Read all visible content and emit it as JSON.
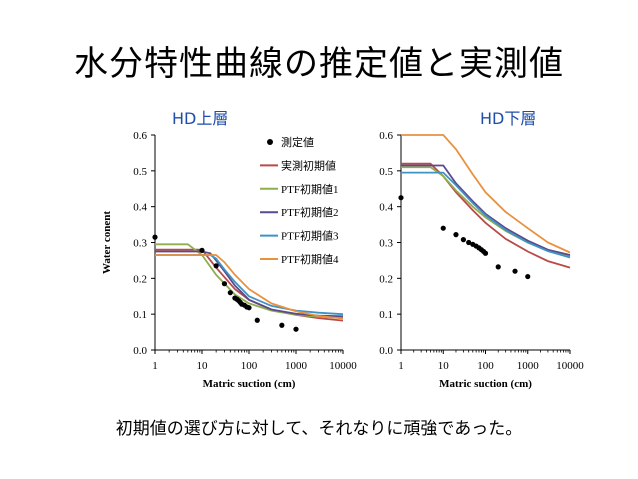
{
  "slide": {
    "title": "水分特性曲線の推定値と実測値",
    "footer": "初期値の選び方に対して、それなりに頑強であった。"
  },
  "colors": {
    "observed": "#000000",
    "measured_init": "#b84a48",
    "ptf1": "#8fae4e",
    "ptf2": "#5a4a8e",
    "ptf3": "#3f93c4",
    "ptf4": "#e8913e",
    "panel_title": "#1f4ea8"
  },
  "chart_data": [
    {
      "type": "line",
      "panel_title": "HD上層",
      "xlabel": "Matric suction (cm)",
      "ylabel": "Water conent",
      "xscale": "log",
      "xlim": [
        1,
        10000
      ],
      "ylim": [
        0,
        0.6
      ],
      "x_ticks": [
        "1",
        "10",
        "100",
        "1000",
        "10000"
      ],
      "y_ticks": [
        "0.0",
        "0.1",
        "0.2",
        "0.3",
        "0.4",
        "0.5",
        "0.6"
      ],
      "legend": {
        "placement": "top-right",
        "entries": [
          "測定値",
          "実測初期値",
          "PTF初期値1",
          "PTF初期値2",
          "PTF初期値3",
          "PTF初期値4"
        ]
      },
      "scatter": {
        "name": "測定値",
        "x": [
          1,
          10,
          20,
          30,
          40,
          50,
          55,
          60,
          65,
          70,
          80,
          90,
          100,
          150,
          500,
          1000
        ],
        "y": [
          0.315,
          0.278,
          0.235,
          0.185,
          0.16,
          0.145,
          0.142,
          0.138,
          0.133,
          0.128,
          0.125,
          0.12,
          0.118,
          0.083,
          0.069,
          0.058
        ]
      },
      "series": [
        {
          "name": "実測初期値",
          "x": [
            1,
            10,
            20,
            50,
            100,
            300,
            1000,
            3000,
            10000
          ],
          "y": [
            0.28,
            0.28,
            0.23,
            0.17,
            0.14,
            0.113,
            0.098,
            0.089,
            0.082
          ]
        },
        {
          "name": "PTF初期値1",
          "x": [
            1,
            5,
            10,
            20,
            50,
            100,
            300,
            1000,
            3000,
            10000
          ],
          "y": [
            0.295,
            0.295,
            0.265,
            0.21,
            0.155,
            0.13,
            0.11,
            0.098,
            0.093,
            0.09
          ]
        },
        {
          "name": "PTF初期値2",
          "x": [
            1,
            10,
            15,
            20,
            30,
            50,
            100,
            300,
            1000,
            3000,
            10000
          ],
          "y": [
            0.275,
            0.275,
            0.27,
            0.25,
            0.22,
            0.18,
            0.14,
            0.113,
            0.101,
            0.096,
            0.094
          ]
        },
        {
          "name": "PTF初期値3",
          "x": [
            1,
            15,
            20,
            30,
            50,
            100,
            300,
            1000,
            3000,
            10000
          ],
          "y": [
            0.265,
            0.265,
            0.255,
            0.225,
            0.19,
            0.15,
            0.123,
            0.11,
            0.104,
            0.1
          ]
        },
        {
          "name": "PTF初期値4",
          "x": [
            1,
            20,
            30,
            50,
            100,
            300,
            1000,
            3000,
            10000
          ],
          "y": [
            0.265,
            0.265,
            0.245,
            0.21,
            0.17,
            0.13,
            0.108,
            0.095,
            0.088
          ]
        }
      ]
    },
    {
      "type": "line",
      "panel_title": "HD下層",
      "xlabel": "Matric suction (cm)",
      "ylabel": "",
      "xscale": "log",
      "xlim": [
        1,
        10000
      ],
      "ylim": [
        0,
        0.6
      ],
      "x_ticks": [
        "1",
        "10",
        "100",
        "1000",
        "10000"
      ],
      "y_ticks": [
        "0.0",
        "0.1",
        "0.2",
        "0.3",
        "0.4",
        "0.5",
        "0.6"
      ],
      "scatter": {
        "name": "測定値",
        "x": [
          1,
          10,
          20,
          30,
          40,
          50,
          60,
          70,
          80,
          90,
          100,
          200,
          500,
          1000
        ],
        "y": [
          0.425,
          0.34,
          0.322,
          0.308,
          0.3,
          0.295,
          0.29,
          0.285,
          0.28,
          0.275,
          0.27,
          0.232,
          0.22,
          0.205
        ]
      },
      "series": [
        {
          "name": "実測初期値",
          "x": [
            1,
            5,
            10,
            20,
            50,
            100,
            300,
            1000,
            3000,
            10000
          ],
          "y": [
            0.52,
            0.52,
            0.485,
            0.44,
            0.39,
            0.355,
            0.31,
            0.275,
            0.248,
            0.23
          ]
        },
        {
          "name": "PTF初期値1",
          "x": [
            1,
            5,
            10,
            20,
            50,
            100,
            300,
            1000,
            3000,
            10000
          ],
          "y": [
            0.51,
            0.51,
            0.485,
            0.445,
            0.4,
            0.37,
            0.332,
            0.3,
            0.278,
            0.262
          ]
        },
        {
          "name": "PTF初期値2",
          "x": [
            1,
            10,
            20,
            50,
            100,
            300,
            1000,
            3000,
            10000
          ],
          "y": [
            0.515,
            0.515,
            0.465,
            0.415,
            0.38,
            0.34,
            0.305,
            0.28,
            0.265
          ]
        },
        {
          "name": "PTF初期値3",
          "x": [
            1,
            10,
            20,
            50,
            100,
            300,
            1000,
            3000,
            10000
          ],
          "y": [
            0.495,
            0.495,
            0.46,
            0.41,
            0.376,
            0.335,
            0.3,
            0.276,
            0.258
          ]
        },
        {
          "name": "PTF初期値4",
          "x": [
            1,
            10,
            20,
            50,
            100,
            300,
            1000,
            3000,
            10000
          ],
          "y": [
            0.6,
            0.6,
            0.56,
            0.49,
            0.44,
            0.385,
            0.34,
            0.3,
            0.272
          ]
        }
      ]
    }
  ]
}
